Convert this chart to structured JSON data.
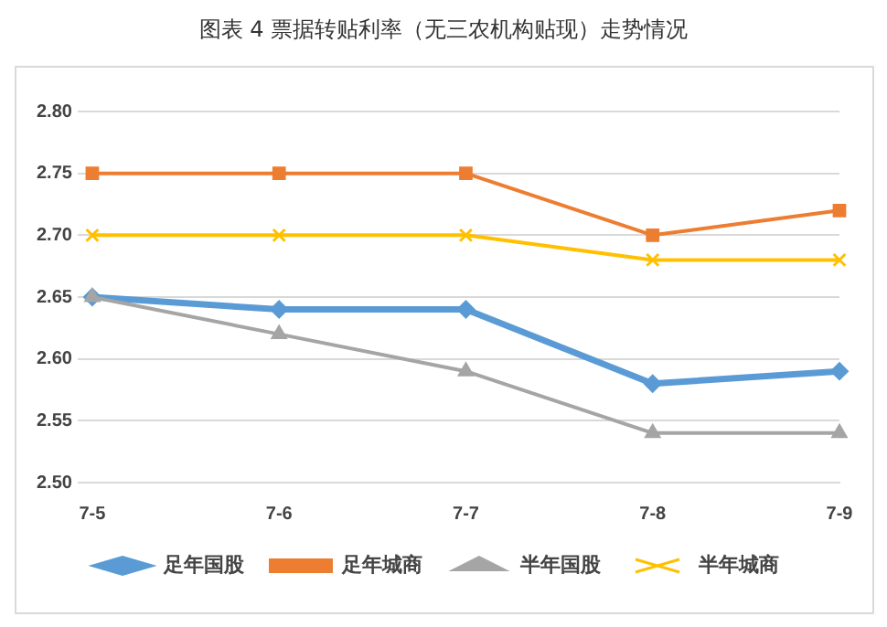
{
  "chart_data": {
    "type": "line",
    "title": "图表 4  票据转贴利率（无三农机构贴现）走势情况",
    "categories": [
      "7-5",
      "7-6",
      "7-7",
      "7-8",
      "7-9"
    ],
    "series": [
      {
        "name": "足年国股",
        "color": "#5b9bd5",
        "marker": "diamond",
        "values": [
          2.65,
          2.64,
          2.64,
          2.58,
          2.59
        ]
      },
      {
        "name": "足年城商",
        "color": "#ed7d31",
        "marker": "square",
        "values": [
          2.75,
          2.75,
          2.75,
          2.7,
          2.72
        ]
      },
      {
        "name": "半年国股",
        "color": "#a5a5a5",
        "marker": "triangle",
        "values": [
          2.65,
          2.62,
          2.59,
          2.54,
          2.54
        ]
      },
      {
        "name": "半年城商",
        "color": "#ffc000",
        "marker": "cross",
        "values": [
          2.7,
          2.7,
          2.7,
          2.68,
          2.68
        ]
      }
    ],
    "ylim": [
      2.5,
      2.8
    ],
    "yticks": [
      {
        "value": 2.5,
        "label": "2.50"
      },
      {
        "value": 2.55,
        "label": "2.55"
      },
      {
        "value": 2.6,
        "label": "2.60"
      },
      {
        "value": 2.65,
        "label": "2.65"
      },
      {
        "value": 2.7,
        "label": "2.70"
      },
      {
        "value": 2.75,
        "label": "2.75"
      },
      {
        "value": 2.8,
        "label": "2.80"
      }
    ],
    "grid": "y",
    "legend": "bottom",
    "line_style": "solid"
  }
}
